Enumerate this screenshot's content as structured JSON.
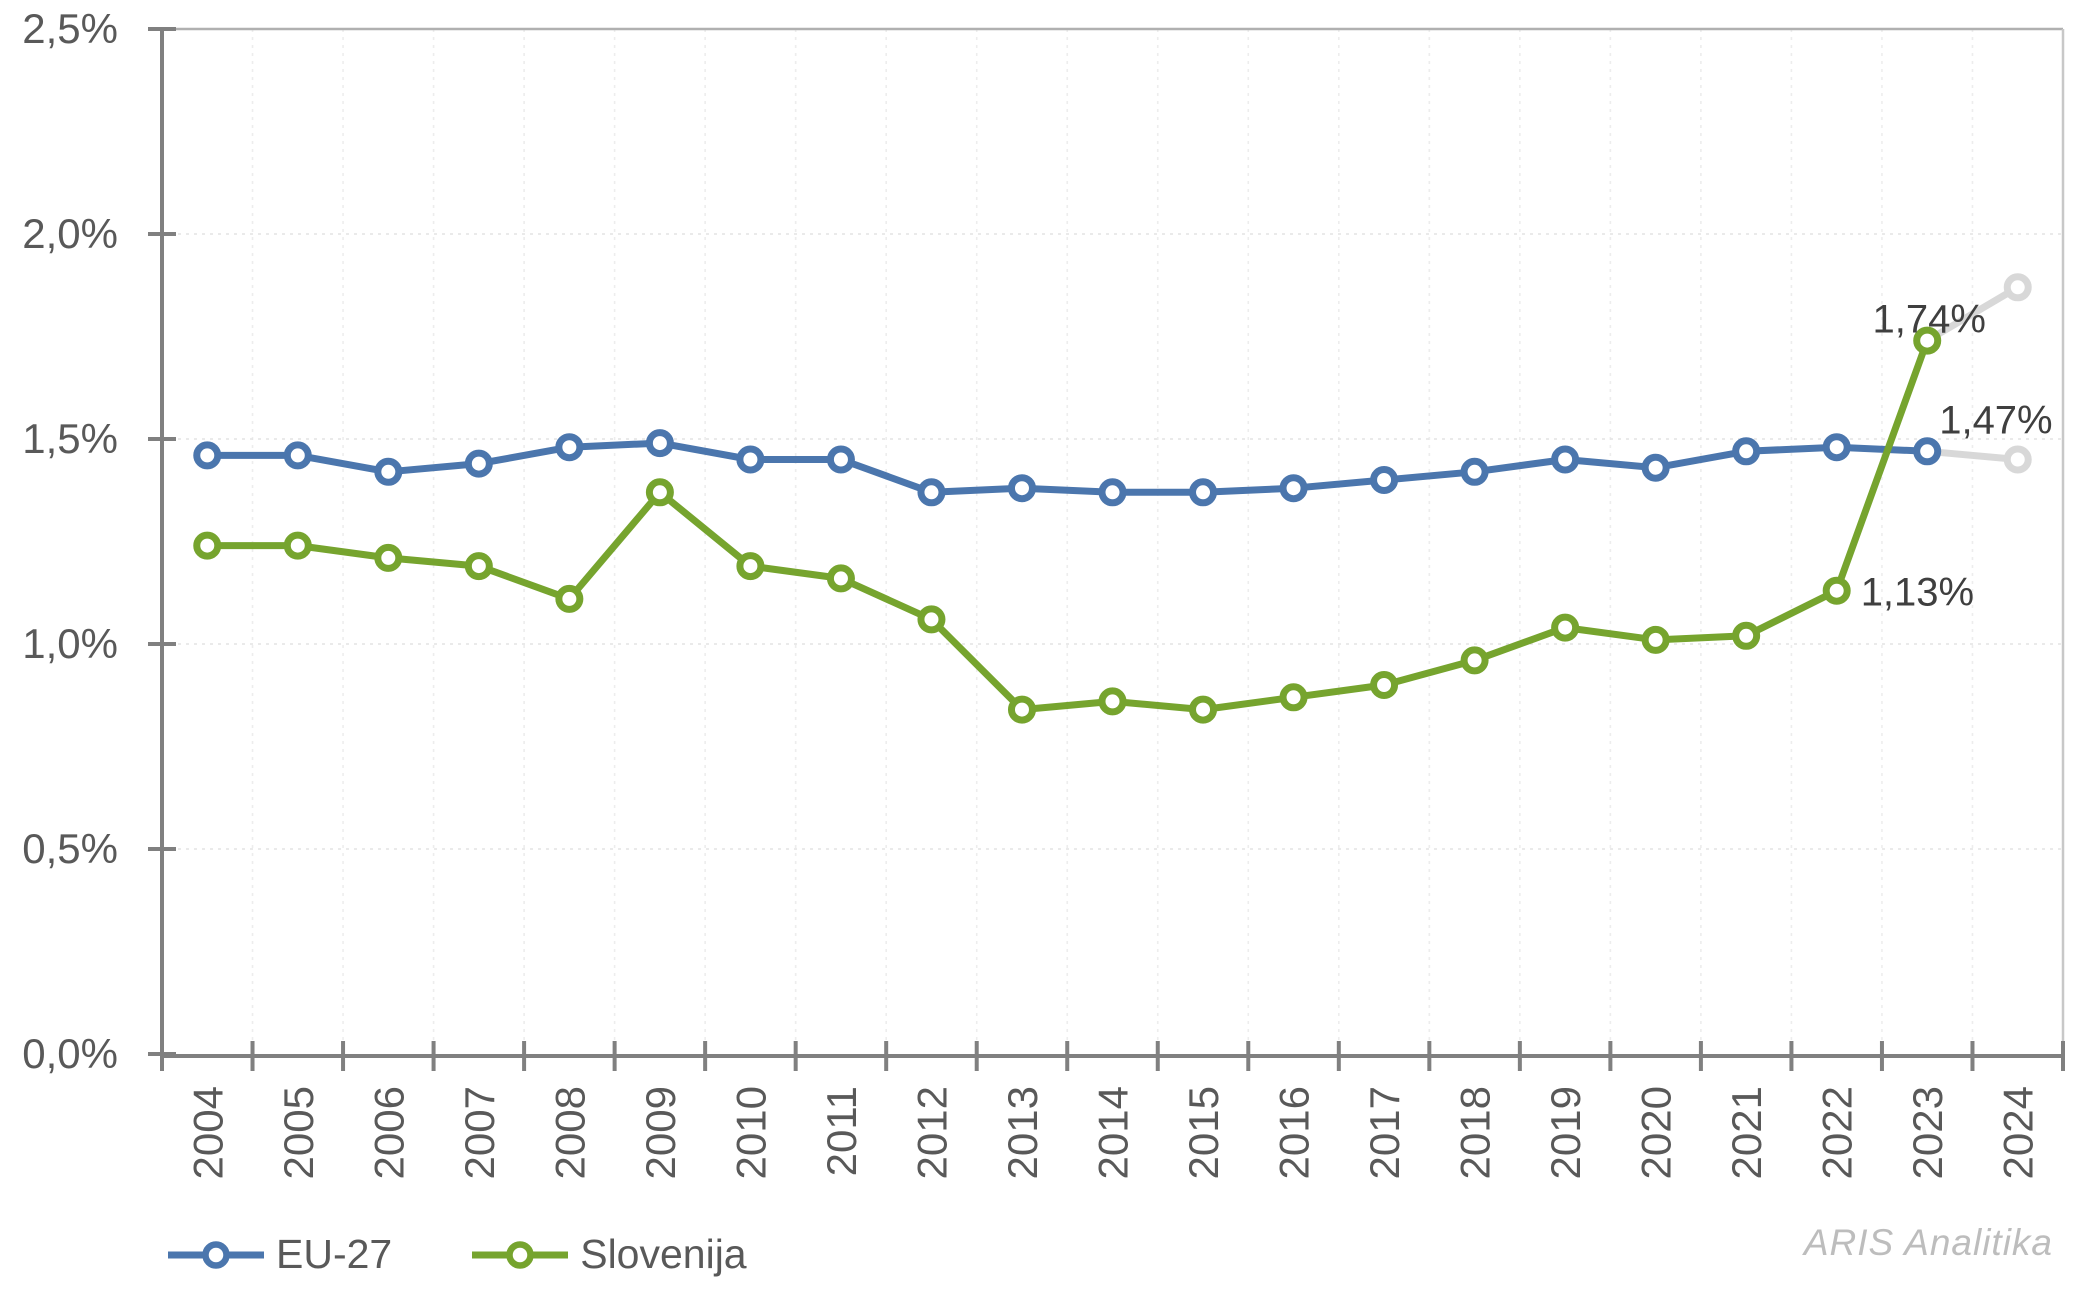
{
  "chart_data": {
    "type": "line",
    "title": "",
    "categories": [
      "2004",
      "2005",
      "2006",
      "2007",
      "2008",
      "2009",
      "2010",
      "2011",
      "2012",
      "2013",
      "2014",
      "2015",
      "2016",
      "2017",
      "2018",
      "2019",
      "2020",
      "2021",
      "2022",
      "2023",
      "2024"
    ],
    "series": [
      {
        "name": "EU-27",
        "color": "#4B76AD",
        "values": [
          1.46,
          1.46,
          1.42,
          1.44,
          1.48,
          1.49,
          1.45,
          1.45,
          1.37,
          1.38,
          1.37,
          1.37,
          1.38,
          1.4,
          1.42,
          1.45,
          1.43,
          1.47,
          1.48,
          1.47,
          1.45
        ],
        "last_point_forecast": true
      },
      {
        "name": "Slovenija",
        "color": "#76A42E",
        "values": [
          1.24,
          1.24,
          1.21,
          1.19,
          1.11,
          1.37,
          1.19,
          1.16,
          1.06,
          0.84,
          0.86,
          0.84,
          0.87,
          0.9,
          0.96,
          1.04,
          1.01,
          1.02,
          1.13,
          1.74,
          1.87
        ],
        "last_point_forecast": true
      }
    ],
    "forecast_color": "#D8D8D8",
    "ylim": [
      0,
      2.5
    ],
    "y_tick_step": 0.5,
    "y_tick_labels": [
      "0,0%",
      "0,5%",
      "1,0%",
      "1,5%",
      "2,0%",
      "2,5%"
    ],
    "x_label_rotation": -90,
    "grid": true,
    "legend_position": "bottom-left",
    "annotations": [
      {
        "text": "1,74%",
        "series": "Slovenija",
        "year": "2023",
        "position": "above"
      },
      {
        "text": "1,47%",
        "series": "EU-27",
        "year": "2023",
        "position": "right-above"
      },
      {
        "text": "1,13%",
        "series": "Slovenija",
        "year": "2022",
        "position": "right"
      }
    ]
  },
  "legend": {
    "items": [
      {
        "label": "EU-27",
        "color": "#4B76AD"
      },
      {
        "label": "Slovenija",
        "color": "#76A42E"
      }
    ]
  },
  "watermark": "ARIS Analitika",
  "colors": {
    "background": "#FFFFFF",
    "axis": "#808080",
    "tick_label": "#595959",
    "data_label": "#3F3F3F",
    "grid_horizontal": "#E3E3E3",
    "grid_vertical": "#EDEDED",
    "border_top": "#B0B0B0",
    "border_right": "#C8C8C8",
    "marker_fill": "#FFFFFF",
    "watermark": "#BDBDBD"
  }
}
